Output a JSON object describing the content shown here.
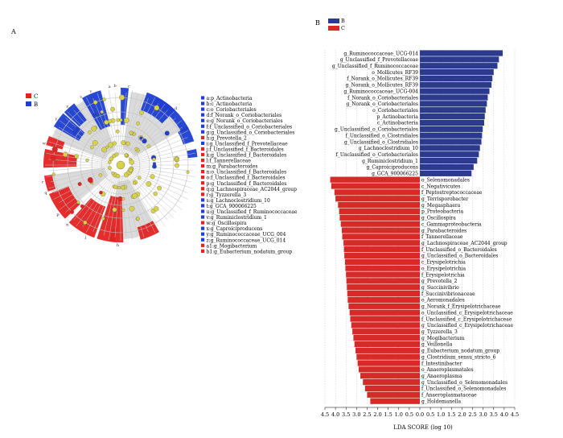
{
  "panels": {
    "a": "A",
    "b": "B"
  },
  "colors": {
    "B": "#2b3a8c",
    "C": "#d62a28",
    "cladeB": "#1f3fd0",
    "cladeC": "#e32222",
    "node": "#d8d24a",
    "grid": "#c8c8c8"
  },
  "cladogram": {
    "legend": [
      {
        "key": "C",
        "label": "C",
        "color": "#e32222"
      },
      {
        "key": "B",
        "label": "B",
        "color": "#1f3fd0"
      }
    ]
  },
  "taxa_legend": [
    {
      "label": "a:p_Actinobacteria",
      "group": "B"
    },
    {
      "label": "b:c_Actinobacteria",
      "group": "B"
    },
    {
      "label": "c:o_Coriobacteriales",
      "group": "B"
    },
    {
      "label": "d:f_Norank_o_Coriobacteriales",
      "group": "B"
    },
    {
      "label": "e:g_Norank_o_Coriobacteriales",
      "group": "B"
    },
    {
      "label": "f:f_Unclassified_o_Coriobacteriales",
      "group": "B"
    },
    {
      "label": "g:g_Unclassified_o_Coriobacteriales",
      "group": "B"
    },
    {
      "label": "h:g_Prevotella_2",
      "group": "C"
    },
    {
      "label": "i:g_Unclassified_f_Prevotellaceae",
      "group": "B"
    },
    {
      "label": "j:f_Unclassified_f_Bacteroidales",
      "group": "C"
    },
    {
      "label": "k:g_Unclassified_f_Bacteroidales",
      "group": "C"
    },
    {
      "label": "l:f_Tannerellaceae",
      "group": "C"
    },
    {
      "label": "m:g_Parabacteroides",
      "group": "C"
    },
    {
      "label": "n:o_Unclassified_f_Bacteroidales",
      "group": "C"
    },
    {
      "label": "o:f_Unclassified_f_Bacteroidales",
      "group": "C"
    },
    {
      "label": "p:g_Unclassified_f_Bacteroidales",
      "group": "C"
    },
    {
      "label": "q:g_Lachnospiraceae_AC2044_group",
      "group": "C"
    },
    {
      "label": "r:g_Tyzzerella_3",
      "group": "C"
    },
    {
      "label": "s:g_Lachnoclostridium_10",
      "group": "B"
    },
    {
      "label": "t:g_GCA_900066225",
      "group": "B"
    },
    {
      "label": "u:g_Unclassified_f_Ruminococcaceae",
      "group": "B"
    },
    {
      "label": "v:g_Ruminiclostridium_1",
      "group": "B"
    },
    {
      "label": "w:g_Oscillospira",
      "group": "C"
    },
    {
      "label": "x:g_Caproiciproducens",
      "group": "B"
    },
    {
      "label": "y:g_Ruminococcaceae_UCG_004",
      "group": "B"
    },
    {
      "label": "z:g_Ruminococcaceae_UCG_014",
      "group": "B"
    },
    {
      "label": "a1:g_Mogibacterium",
      "group": "C"
    },
    {
      "label": "b1:g_Eubacterium_nodatum_group",
      "group": "C"
    }
  ],
  "chart_data": {
    "type": "bar",
    "orientation": "horizontal",
    "xlabel": "LDA SCORE (log 10)",
    "xlim": [
      -4.5,
      4.5
    ],
    "ticks": [
      "4.5",
      "4.0",
      "3.5",
      "3.0",
      "2.5",
      "2.0",
      "1.5",
      "1.0",
      "0.5",
      "0.0",
      "0.5",
      "1.0",
      "1.5",
      "2.0",
      "2.5",
      "3.0",
      "3.5",
      "4.0",
      "4.5"
    ],
    "legend": [
      {
        "name": "B",
        "color": "#2b3a8c"
      },
      {
        "name": "C",
        "color": "#d62a28"
      }
    ],
    "legend_position": "top-left",
    "series": [
      {
        "name": "B",
        "bars": [
          {
            "label": "g_Ruminococcaceae_UCG-014",
            "value": 3.93
          },
          {
            "label": "g_Unclassified_f_Prevotellaceae",
            "value": 3.75
          },
          {
            "label": "g_Unclassified_f_Ruminococcaceae",
            "value": 3.68
          },
          {
            "label": "o_Mollicutes_RF39",
            "value": 3.5
          },
          {
            "label": "f_Norank_o_Mollicutes_RF39",
            "value": 3.44
          },
          {
            "label": "g_Norank_o_Mollicutes_RF39",
            "value": 3.4
          },
          {
            "label": "g_Ruminococcaceae_UCG-004",
            "value": 3.3
          },
          {
            "label": "f_Norank_o_Coriobacteriales",
            "value": 3.22
          },
          {
            "label": "g_Norank_o_Coriobacteriales",
            "value": 3.18
          },
          {
            "label": "o_Coriobacteriales",
            "value": 3.12
          },
          {
            "label": "p_Actinobacteria",
            "value": 3.08
          },
          {
            "label": "c_Actinobacteria",
            "value": 3.05
          },
          {
            "label": "g_Unclassified_o_Coriobacteriales",
            "value": 2.98
          },
          {
            "label": "f_Unclassified_o_Clostridiales",
            "value": 2.95
          },
          {
            "label": "g_Unclassified_o_Clostridiales",
            "value": 2.92
          },
          {
            "label": "g_Lachnoclostridium_10",
            "value": 2.85
          },
          {
            "label": "f_Unclassified_o_Coriobacteriales",
            "value": 2.8
          },
          {
            "label": "g_Ruminiclostridium_1",
            "value": 2.72
          },
          {
            "label": "g_Caproiciproducens",
            "value": 2.55
          },
          {
            "label": "g_GCA_900066225",
            "value": 2.45
          }
        ]
      },
      {
        "name": "C",
        "bars": [
          {
            "label": "o_Selenomonadales",
            "value": 4.25
          },
          {
            "label": "c_Negativicutes",
            "value": 4.2
          },
          {
            "label": "f_Peptostreptococcaceae",
            "value": 4.05
          },
          {
            "label": "g_Terrisporobacter",
            "value": 4.0
          },
          {
            "label": "g_Megasphaera",
            "value": 3.88
          },
          {
            "label": "p_Proteobacteria",
            "value": 3.83
          },
          {
            "label": "g_Oscillospira",
            "value": 3.8
          },
          {
            "label": "c_Gammaproteobacteria",
            "value": 3.75
          },
          {
            "label": "g_Parabacteroides",
            "value": 3.7
          },
          {
            "label": "f_Tannerellaceae",
            "value": 3.68
          },
          {
            "label": "g_Lachnospiraceae_AC2044_group",
            "value": 3.62
          },
          {
            "label": "f_Unclassified_o_Bacteroidales",
            "value": 3.6
          },
          {
            "label": "g_Unclassified_o_Bacteroidales",
            "value": 3.58
          },
          {
            "label": "c_Erysipelotrichia",
            "value": 3.55
          },
          {
            "label": "o_Erysipelotrichia",
            "value": 3.53
          },
          {
            "label": "f_Erysipelotrichia",
            "value": 3.5
          },
          {
            "label": "g_Prevotella_2",
            "value": 3.48
          },
          {
            "label": "g_Succinivibrio",
            "value": 3.46
          },
          {
            "label": "f_Succinivibrionaceae",
            "value": 3.44
          },
          {
            "label": "o_Aeromonadales",
            "value": 3.42
          },
          {
            "label": "g_Norank_f_Erysipelotrichaceae",
            "value": 3.38
          },
          {
            "label": "o_Unclassified_c_Erysipelotrichaceae",
            "value": 3.33
          },
          {
            "label": "f_Unclassified_c_Erysipelotrichaceae",
            "value": 3.3
          },
          {
            "label": "g_Unclassified_c_Erysipelotrichaceae",
            "value": 3.25
          },
          {
            "label": "g_Tyzzerella_3",
            "value": 3.2
          },
          {
            "label": "g_Mogibacterium",
            "value": 3.15
          },
          {
            "label": "g_Veillonella",
            "value": 3.1
          },
          {
            "label": "g_Eubacterium_nodatum_group",
            "value": 3.05
          },
          {
            "label": "g_Clostridium_sensu_stricto_6",
            "value": 3.0
          },
          {
            "label": "f_Intestinibacter",
            "value": 2.95
          },
          {
            "label": "o_Anaeroplasmatales",
            "value": 2.9
          },
          {
            "label": "g_Anaeroplasma",
            "value": 2.82
          },
          {
            "label": "g_Unclassified_o_Selenomonadales",
            "value": 2.7
          },
          {
            "label": "f_Unclassified_o_Selenomonadales",
            "value": 2.6
          },
          {
            "label": "f_Anaeroplasmataceae",
            "value": 2.5
          },
          {
            "label": "g_Holdemanella",
            "value": 2.35
          }
        ]
      }
    ]
  }
}
